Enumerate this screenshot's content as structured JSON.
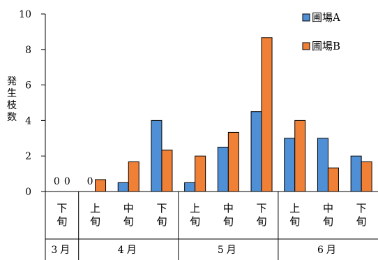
{
  "chart_data": {
    "type": "bar",
    "title": "",
    "ylabel": "発生枝数",
    "ylim": [
      0,
      10
    ],
    "yticks": [
      0,
      2,
      4,
      6,
      8,
      10
    ],
    "grid": false,
    "legend_position": "top-right",
    "categories": [
      {
        "dekad": "下旬",
        "month": "3月"
      },
      {
        "dekad": "上旬",
        "month": "4月"
      },
      {
        "dekad": "中旬",
        "month": "4月"
      },
      {
        "dekad": "下旬",
        "month": "4月"
      },
      {
        "dekad": "上旬",
        "month": "5月"
      },
      {
        "dekad": "中旬",
        "month": "5月"
      },
      {
        "dekad": "下旬",
        "month": "5月"
      },
      {
        "dekad": "上旬",
        "month": "6月"
      },
      {
        "dekad": "中旬",
        "month": "6月"
      },
      {
        "dekad": "下旬",
        "month": "6月"
      }
    ],
    "months": [
      {
        "label": "3月",
        "span": 1
      },
      {
        "label": "4月",
        "span": 3
      },
      {
        "label": "5月",
        "span": 3
      },
      {
        "label": "6月",
        "span": 3
      }
    ],
    "series": [
      {
        "name": "圃場A",
        "color": "#4f8fd6",
        "values": [
          0,
          0,
          0.5,
          4,
          0.5,
          2.5,
          4.5,
          3,
          3,
          2
        ]
      },
      {
        "name": "圃場B",
        "color": "#f08036",
        "values": [
          0,
          0.67,
          1.67,
          2.33,
          2,
          3.33,
          8.67,
          4,
          1.33,
          1.67
        ]
      }
    ],
    "data_labels": [
      {
        "category": 0,
        "series": 0,
        "text": "0"
      },
      {
        "category": 0,
        "series": 1,
        "text": "0"
      },
      {
        "category": 1,
        "series": 0,
        "text": "0"
      }
    ]
  }
}
